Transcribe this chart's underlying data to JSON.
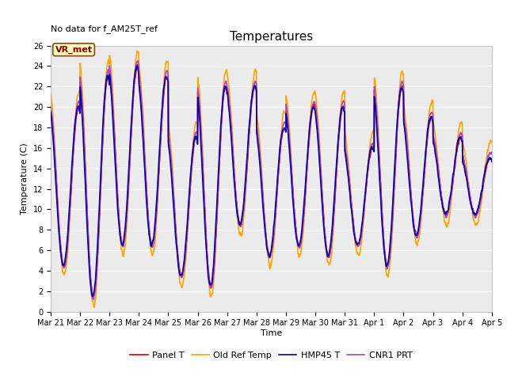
{
  "title": "Temperatures",
  "xlabel": "Time",
  "ylabel": "Temperature (C)",
  "annotation_text": "No data for f_AM25T_ref",
  "vr_met_label": "VR_met",
  "ylim": [
    0,
    26
  ],
  "yticks": [
    0,
    2,
    4,
    6,
    8,
    10,
    12,
    14,
    16,
    18,
    20,
    22,
    24,
    26
  ],
  "x_tick_labels": [
    "Mar 21",
    "Mar 22",
    "Mar 23",
    "Mar 24",
    "Mar 25",
    "Mar 26",
    "Mar 27",
    "Mar 28",
    "Mar 29",
    "Mar 30",
    "Mar 31",
    "Apr 1",
    "Apr 2",
    "Apr 3",
    "Apr 4",
    "Apr 5"
  ],
  "series": [
    {
      "label": "Panel T",
      "color": "#DD0000",
      "lw": 1.2
    },
    {
      "label": "Old Ref Temp",
      "color": "#FFA500",
      "lw": 1.2
    },
    {
      "label": "HMP45 T",
      "color": "#0000BB",
      "lw": 1.2
    },
    {
      "label": "CNR1 PRT",
      "color": "#AA44CC",
      "lw": 1.2
    }
  ],
  "plot_bg_color": "#EBEBEB",
  "title_fontsize": 11,
  "label_fontsize": 8,
  "tick_fontsize": 7,
  "legend_fontsize": 8,
  "annot_fontsize": 8
}
